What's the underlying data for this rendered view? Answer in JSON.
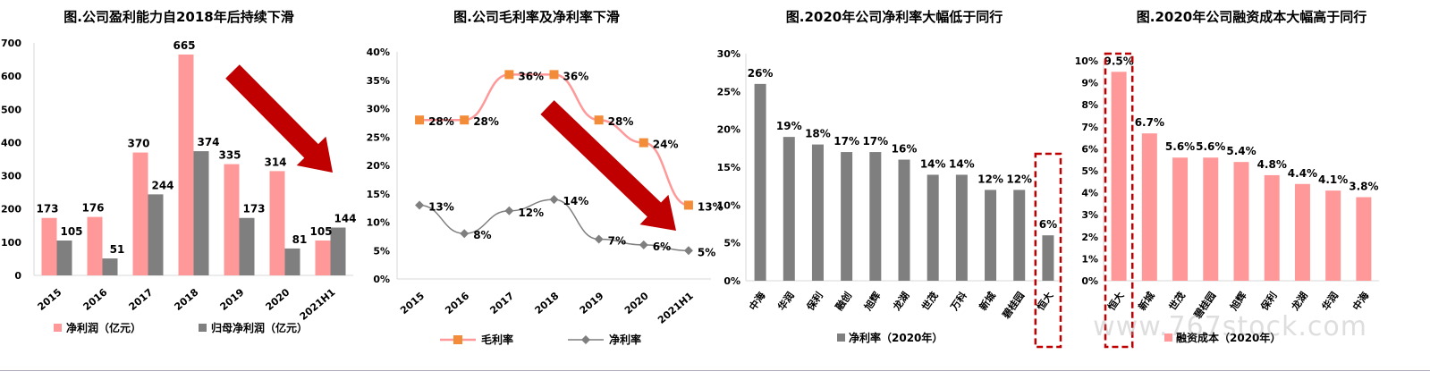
{
  "colors": {
    "pink": "#FF9999",
    "gray": "#7F7F7F",
    "orange": "#F28C38",
    "red": "#C00000",
    "axis": "#D9D9D9"
  },
  "watermark": "www.767stock.com",
  "chart_data": [
    {
      "type": "bar",
      "title": "图.公司盈利能力自2018年后持续下滑",
      "categories": [
        "2015",
        "2016",
        "2017",
        "2018",
        "2019",
        "2020",
        "2021H1"
      ],
      "series": [
        {
          "name": "净利润（亿元）",
          "values": [
            173,
            176,
            370,
            665,
            335,
            314,
            105
          ]
        },
        {
          "name": "归母净利润（亿元）",
          "values": [
            105,
            51,
            244,
            374,
            173,
            81,
            144
          ]
        }
      ],
      "ylim": [
        0,
        700
      ],
      "yticks": [
        "0",
        "100",
        "200",
        "300",
        "400",
        "500",
        "600",
        "700"
      ],
      "legend_position": "bottom",
      "annotation": "red-down-arrow"
    },
    {
      "type": "line",
      "title": "图.公司毛利率及净利率下滑",
      "categories": [
        "2015",
        "2016",
        "2017",
        "2018",
        "2019",
        "2020",
        "2021H1"
      ],
      "series": [
        {
          "name": "毛利率",
          "values": [
            28,
            28,
            36,
            36,
            28,
            24,
            13
          ],
          "labels": [
            "28%",
            "28%",
            "36%",
            "36%",
            "28%",
            "24%",
            "13%"
          ]
        },
        {
          "name": "净利率",
          "values": [
            13,
            8,
            12,
            14,
            7,
            6,
            5
          ],
          "labels": [
            "13%",
            "8%",
            "12%",
            "14%",
            "7%",
            "6%",
            "5%"
          ]
        }
      ],
      "ylim": [
        0,
        40
      ],
      "yticks": [
        "0%",
        "5%",
        "10%",
        "15%",
        "20%",
        "25%",
        "30%",
        "35%",
        "40%"
      ],
      "legend_position": "bottom",
      "annotation": "red-down-arrow"
    },
    {
      "type": "bar",
      "title": "图.2020年公司净利率大幅低于同行",
      "categories": [
        "中海",
        "华润",
        "保利",
        "融创",
        "旭辉",
        "龙湖",
        "世茂",
        "万科",
        "新城",
        "碧桂园",
        "恒大"
      ],
      "series": [
        {
          "name": "净利率（2020年）",
          "values": [
            26,
            19,
            18,
            17,
            17,
            16,
            14,
            14,
            12,
            12,
            6
          ],
          "labels": [
            "26%",
            "19%",
            "18%",
            "17%",
            "17%",
            "16%",
            "14%",
            "14%",
            "12%",
            "12%",
            "6%"
          ]
        }
      ],
      "ylim": [
        0,
        30
      ],
      "yticks": [
        "0%",
        "5%",
        "10%",
        "15%",
        "20%",
        "25%",
        "30%"
      ],
      "highlight": "恒大",
      "legend_position": "bottom"
    },
    {
      "type": "bar",
      "title": "图.2020年公司融资成本大幅高于同行",
      "categories": [
        "恒大",
        "新城",
        "世茂",
        "碧桂园",
        "旭辉",
        "保利",
        "龙湖",
        "华润",
        "中海"
      ],
      "series": [
        {
          "name": "融资成本（2020年）",
          "values": [
            9.5,
            6.7,
            5.6,
            5.6,
            5.4,
            4.8,
            4.4,
            4.1,
            3.8
          ],
          "labels": [
            "9.5%",
            "6.7%",
            "5.6%",
            "5.6%",
            "5.4%",
            "4.8%",
            "4.4%",
            "4.1%",
            "3.8%"
          ]
        }
      ],
      "ylim": [
        0,
        10
      ],
      "yticks": [
        "0%",
        "1%",
        "2%",
        "3%",
        "4%",
        "5%",
        "6%",
        "7%",
        "8%",
        "9%",
        "10%"
      ],
      "highlight": "恒大",
      "legend_position": "bottom"
    }
  ]
}
